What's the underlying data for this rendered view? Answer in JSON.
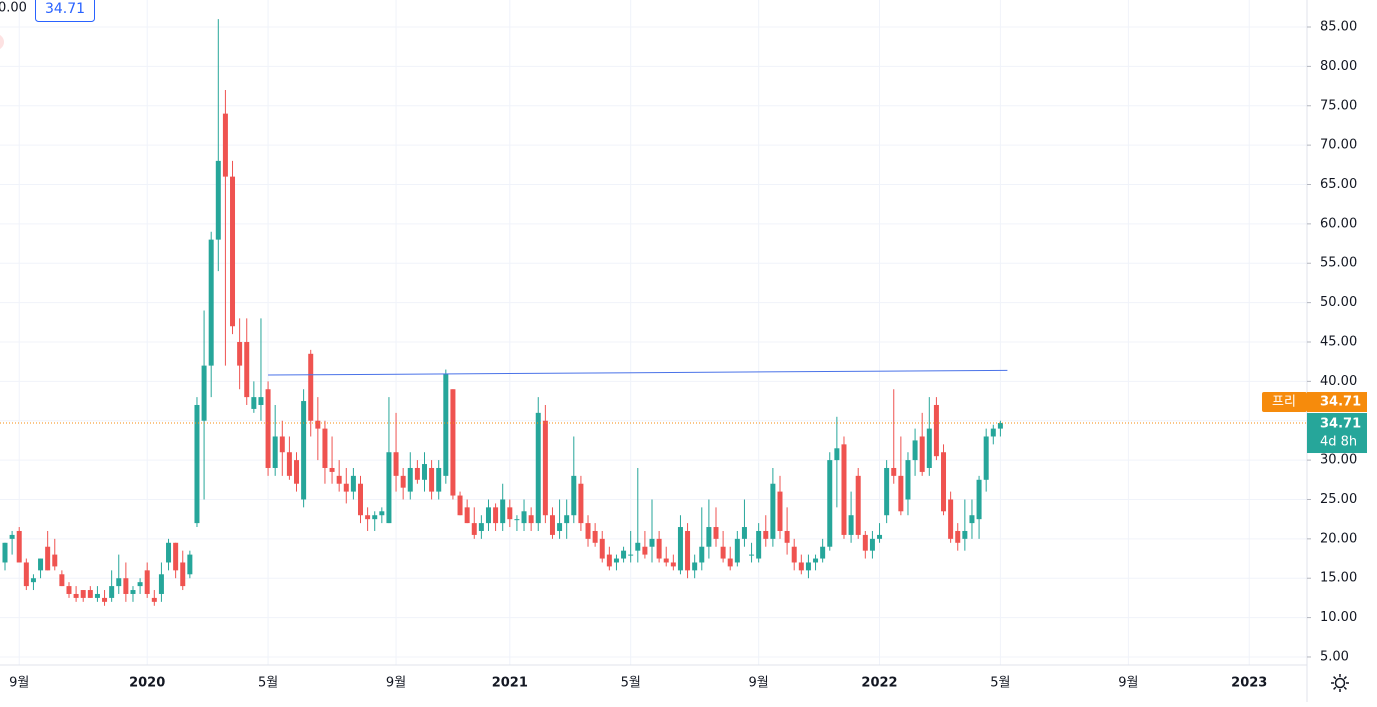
{
  "header": {
    "partial_value": "0.00",
    "price": 34.71
  },
  "chart_data": {
    "type": "candlestick",
    "categories": [
      null,
      null,
      "9월",
      null,
      null,
      null,
      null,
      null,
      null,
      null,
      null,
      null,
      null,
      null,
      null,
      null,
      null,
      null,
      null,
      null,
      "2020",
      null,
      null,
      null,
      null,
      null,
      null,
      null,
      null,
      null,
      null,
      null,
      null,
      null,
      null,
      null,
      null,
      "5월",
      null,
      null,
      null,
      null,
      null,
      null,
      null,
      null,
      null,
      null,
      null,
      null,
      null,
      null,
      null,
      null,
      null,
      "9월",
      null,
      null,
      null,
      null,
      null,
      null,
      null,
      null,
      null,
      null,
      null,
      null,
      null,
      null,
      null,
      "2021",
      null,
      null,
      null,
      null,
      null,
      null,
      null,
      null,
      null,
      null,
      null,
      null,
      null,
      null,
      null,
      null,
      "5월",
      null,
      null,
      null,
      null,
      null,
      null,
      null,
      null,
      null,
      null,
      null,
      null,
      null,
      null,
      null,
      null,
      null,
      "9월",
      null,
      null,
      null,
      null,
      null,
      null,
      null,
      null,
      null,
      null,
      null,
      null,
      null,
      null,
      null,
      null,
      "2022",
      null,
      null,
      null,
      null,
      null,
      null,
      null,
      null,
      null,
      null,
      null,
      null,
      null,
      null,
      null,
      null,
      "5월",
      null,
      null,
      null,
      null,
      null,
      null,
      null,
      null,
      null,
      null,
      null,
      null,
      null,
      null,
      null,
      null,
      null,
      "9월",
      null,
      null,
      null,
      null,
      null,
      null,
      null,
      null,
      null,
      null,
      null,
      null,
      null,
      null,
      null,
      null,
      "2023"
    ],
    "ohlc": [
      [
        17,
        19.5,
        16,
        19.5
      ],
      [
        20,
        21,
        18,
        20.5
      ],
      [
        21,
        21.5,
        17,
        17
      ],
      [
        17,
        17.5,
        13.5,
        14
      ],
      [
        14.5,
        15.5,
        13.5,
        15
      ],
      [
        16,
        17.5,
        15,
        17.5
      ],
      [
        19,
        21,
        16,
        16
      ],
      [
        18,
        20,
        16,
        16.5
      ],
      [
        15.5,
        16,
        14,
        14
      ],
      [
        14,
        14.5,
        12.5,
        13
      ],
      [
        13,
        14,
        12,
        12.5
      ],
      [
        13.5,
        13.5,
        12,
        12.5
      ],
      [
        13.5,
        14,
        12.5,
        12.5
      ],
      [
        12.5,
        14,
        12,
        13
      ],
      [
        12.5,
        13.5,
        11.5,
        12
      ],
      [
        12.5,
        16,
        12,
        14
      ],
      [
        14,
        18,
        13,
        15
      ],
      [
        15,
        17,
        12,
        13
      ],
      [
        13,
        14,
        12,
        13.5
      ],
      [
        14,
        15,
        13,
        14.5
      ],
      [
        16,
        17,
        12.5,
        13
      ],
      [
        12.5,
        13.5,
        11.5,
        12
      ],
      [
        13,
        17,
        12,
        15.5
      ],
      [
        17,
        20,
        16,
        19.5
      ],
      [
        19.5,
        19.5,
        15,
        16
      ],
      [
        17,
        18.5,
        13.5,
        14
      ],
      [
        15.5,
        18.5,
        15,
        18
      ],
      [
        22,
        38,
        21.5,
        37
      ],
      [
        35,
        49,
        25,
        42
      ],
      [
        42,
        59,
        38,
        58
      ],
      [
        58,
        86,
        54,
        68
      ],
      [
        74,
        77,
        42,
        66
      ],
      [
        66,
        68,
        46,
        47
      ],
      [
        45,
        48,
        39,
        42
      ],
      [
        45,
        48,
        37,
        38
      ],
      [
        36.5,
        40,
        36,
        38
      ],
      [
        37,
        48,
        35,
        38
      ],
      [
        39,
        40,
        28,
        29
      ],
      [
        29,
        37,
        28,
        33
      ],
      [
        33,
        35,
        28,
        31
      ],
      [
        31,
        33,
        27.5,
        28
      ],
      [
        30,
        31,
        26,
        27
      ],
      [
        25,
        39,
        24,
        37.5
      ],
      [
        43.5,
        44,
        33,
        35
      ],
      [
        35,
        38,
        30,
        34
      ],
      [
        34,
        35,
        27,
        29
      ],
      [
        29,
        33,
        27,
        28.5
      ],
      [
        28,
        30,
        26,
        27
      ],
      [
        27,
        29,
        24.5,
        26
      ],
      [
        26,
        29,
        25,
        28
      ],
      [
        27,
        28,
        22,
        23
      ],
      [
        23,
        24,
        21,
        22.5
      ],
      [
        22.5,
        23.5,
        21,
        23
      ],
      [
        23,
        24,
        22,
        23.5
      ],
      [
        22,
        38,
        22,
        31
      ],
      [
        31,
        36,
        26,
        28
      ],
      [
        28,
        29,
        25,
        26.5
      ],
      [
        26,
        31,
        25,
        29
      ],
      [
        29,
        30,
        27,
        27.5
      ],
      [
        27.5,
        31,
        26,
        29.5
      ],
      [
        29,
        30,
        25,
        26
      ],
      [
        26,
        30,
        25,
        29
      ],
      [
        28,
        41.5,
        27,
        41
      ],
      [
        39,
        39,
        25,
        25.5
      ],
      [
        25.5,
        26,
        23,
        23
      ],
      [
        24,
        25,
        22,
        22
      ],
      [
        22,
        24,
        20,
        20.5
      ],
      [
        21,
        23,
        20,
        22
      ],
      [
        22,
        25,
        21,
        24
      ],
      [
        24,
        24.5,
        21,
        22
      ],
      [
        22,
        27,
        21,
        25
      ],
      [
        24,
        25,
        21.5,
        22.5
      ],
      [
        22.5,
        23,
        21,
        22.5
      ],
      [
        22,
        25,
        21,
        23.5
      ],
      [
        23,
        24,
        21,
        22
      ],
      [
        22,
        38,
        21,
        36
      ],
      [
        35,
        37,
        22,
        23
      ],
      [
        23,
        24,
        20,
        20.5
      ],
      [
        21,
        25,
        20,
        22
      ],
      [
        22,
        25,
        20,
        23
      ],
      [
        23,
        33,
        22,
        28
      ],
      [
        27,
        28,
        21,
        22
      ],
      [
        22,
        23,
        19,
        20
      ],
      [
        21,
        22,
        19,
        19.5
      ],
      [
        20,
        21,
        17,
        17.5
      ],
      [
        18,
        19,
        16,
        16.5
      ],
      [
        17,
        18,
        16,
        17.5
      ],
      [
        17.5,
        19,
        17,
        18.5
      ],
      [
        18,
        21,
        17,
        18
      ],
      [
        18.5,
        29,
        17,
        19.5
      ],
      [
        19,
        21,
        17.5,
        18
      ],
      [
        19,
        25,
        17,
        20
      ],
      [
        20,
        21,
        17,
        17.5
      ],
      [
        17.5,
        19,
        16.5,
        17
      ],
      [
        17,
        18,
        16,
        16.5
      ],
      [
        16,
        23,
        15.5,
        21.5
      ],
      [
        21,
        22,
        15,
        16
      ],
      [
        16,
        18,
        15,
        17
      ],
      [
        17,
        24,
        16,
        19
      ],
      [
        19,
        25,
        17.5,
        21.5
      ],
      [
        21.5,
        24,
        19,
        20
      ],
      [
        19,
        21,
        17,
        17.5
      ],
      [
        17.5,
        19,
        16,
        16.5
      ],
      [
        17,
        21,
        16.5,
        20
      ],
      [
        20,
        25,
        19,
        21.5
      ],
      [
        18,
        19.5,
        17,
        18
      ],
      [
        17.5,
        22,
        17,
        21
      ],
      [
        21,
        23,
        19,
        20
      ],
      [
        20,
        29,
        19,
        27
      ],
      [
        26,
        28,
        20,
        21
      ],
      [
        21,
        24,
        18,
        19.5
      ],
      [
        19,
        20,
        16,
        17
      ],
      [
        17,
        18,
        15.5,
        16
      ],
      [
        16,
        18,
        15,
        17
      ],
      [
        17,
        18,
        16,
        17.5
      ],
      [
        17.5,
        20,
        17,
        19
      ],
      [
        19,
        31,
        18.5,
        30
      ],
      [
        30,
        35.5,
        24,
        31.5
      ],
      [
        32,
        33,
        20,
        20.5
      ],
      [
        20.5,
        26,
        19.5,
        23
      ],
      [
        28,
        29,
        20,
        20.5
      ],
      [
        20.5,
        21,
        17.5,
        18.5
      ],
      [
        18.5,
        21,
        17.5,
        20
      ],
      [
        20,
        22,
        19.5,
        20.5
      ],
      [
        23,
        30,
        22,
        29
      ],
      [
        29,
        39,
        27,
        28
      ],
      [
        28,
        33,
        23,
        23.5
      ],
      [
        25,
        31,
        23,
        30
      ],
      [
        30,
        34,
        28,
        32.5
      ],
      [
        33,
        36,
        28,
        28.5
      ],
      [
        29,
        38,
        28,
        34
      ],
      [
        37,
        38,
        30,
        30.5
      ],
      [
        31,
        32,
        23,
        23.5
      ],
      [
        25,
        26,
        19.5,
        20
      ],
      [
        21,
        22,
        18.5,
        19.5
      ],
      [
        20,
        25,
        18.5,
        21
      ],
      [
        22,
        25,
        20,
        23
      ],
      [
        22.5,
        28,
        20,
        27.5
      ],
      [
        27.5,
        34,
        26,
        33
      ],
      [
        33,
        34.5,
        32,
        34
      ],
      [
        34,
        35,
        33,
        34.71
      ],
      null,
      null,
      null,
      null,
      null,
      null,
      null,
      null,
      null,
      null,
      null,
      null,
      null,
      null,
      null,
      null,
      null,
      null,
      null,
      null,
      null,
      null,
      null,
      null,
      null,
      null,
      null,
      null,
      null,
      null,
      null,
      null,
      null,
      null,
      null
    ],
    "up_color": "#26a69a",
    "down_color": "#ef5350",
    "ylim": [
      3.98,
      88.43
    ],
    "yticks": [
      {
        "value": 5,
        "label": "5.00"
      },
      {
        "value": 10,
        "label": "10.00"
      },
      {
        "value": 15,
        "label": "15.00"
      },
      {
        "value": 20,
        "label": "20.00"
      },
      {
        "value": 25,
        "label": "25.00"
      },
      {
        "value": 30,
        "label": "30.00"
      },
      {
        "value": 35,
        "label": "35.00"
      },
      {
        "value": 40,
        "label": "40.00"
      },
      {
        "value": 45,
        "label": "45.00"
      },
      {
        "value": 50,
        "label": "50.00"
      },
      {
        "value": 55,
        "label": "55.00"
      },
      {
        "value": 60,
        "label": "60.00"
      },
      {
        "value": 65,
        "label": "65.00"
      },
      {
        "value": 70,
        "label": "70.00"
      },
      {
        "value": 75,
        "label": "75.00"
      },
      {
        "value": 80,
        "label": "80.00"
      },
      {
        "value": 85,
        "label": "85.00"
      }
    ],
    "grid": true,
    "trendline": {
      "color": "#4a72e8",
      "values": [
        40.8,
        41.4
      ]
    },
    "last_price": {
      "value": 34.71,
      "color": "#26a69a",
      "countdown": "4d 8h"
    },
    "pre_market": {
      "label": "프리",
      "value": 34.71,
      "color": "#f68b0c"
    }
  }
}
